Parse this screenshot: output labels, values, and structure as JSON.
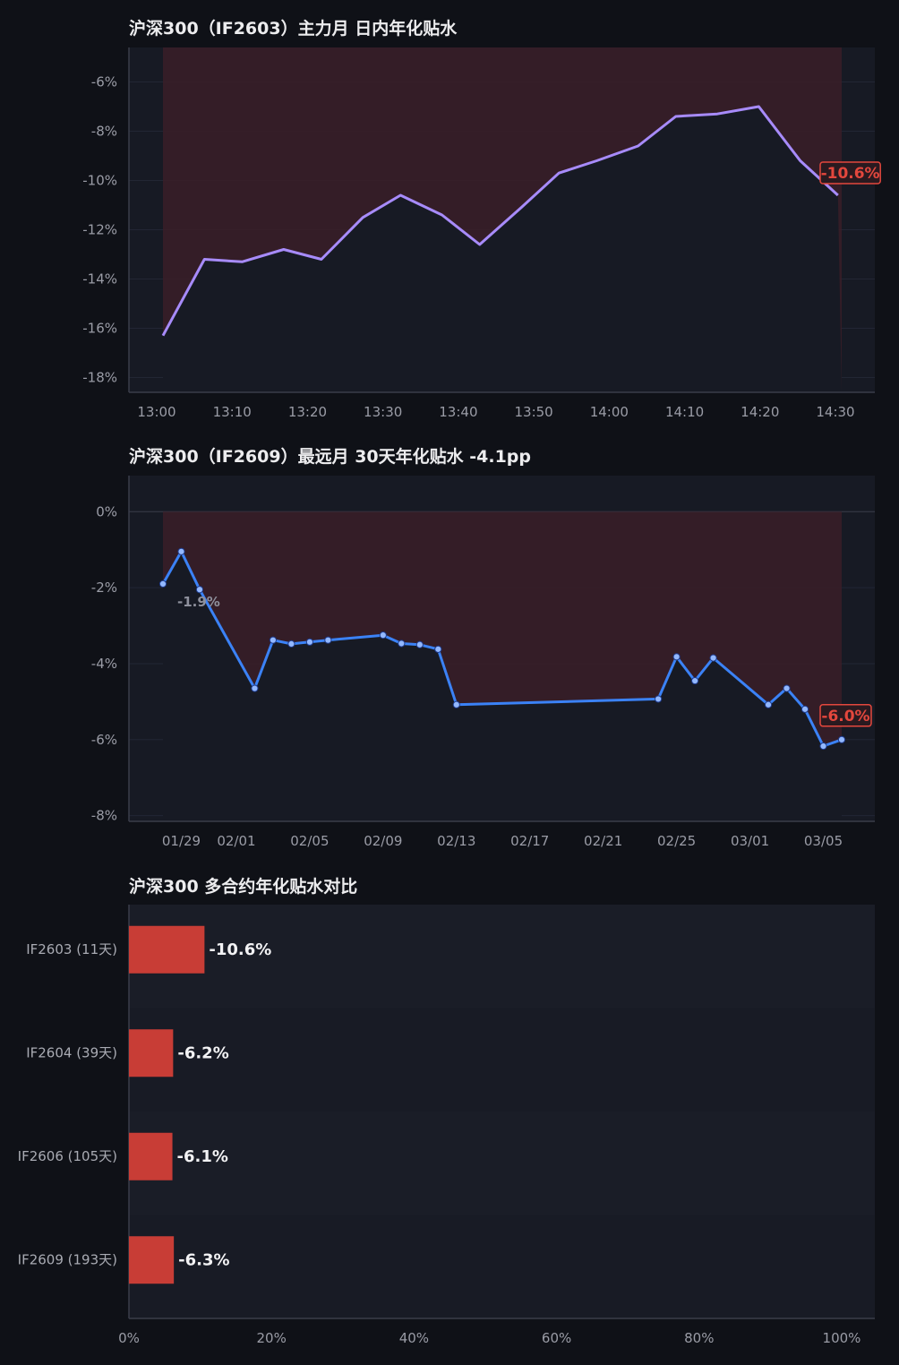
{
  "colors": {
    "page_bg": "#0f1117",
    "plot_bg": "#171a24",
    "shade": "#3a1f28",
    "line1": "#a78bfa",
    "line2": "#3b82f6",
    "bar": "#c83d36",
    "badge": "#e3473d",
    "grid": "#222634",
    "axis": "#3a3d4a"
  },
  "chart_data": [
    {
      "type": "line",
      "title": "沪深300（IF2603）主力月 日内年化贴水",
      "x_tick_labels": [
        "13:00",
        "13:10",
        "13:20",
        "13:30",
        "13:40",
        "13:50",
        "14:00",
        "14:10",
        "14:20",
        "14:30"
      ],
      "x_minutes": [
        0,
        5.5,
        10.5,
        16,
        21,
        26.5,
        31.5,
        37,
        42,
        47.5,
        52.5,
        57.5,
        63,
        68,
        73.5,
        79,
        84.5,
        89.5
      ],
      "y_values": [
        -16.3,
        -13.2,
        -13.3,
        -12.8,
        -13.2,
        -11.5,
        -10.6,
        -11.4,
        -12.6,
        -11.1,
        -9.7,
        -9.2,
        -8.6,
        -7.4,
        -7.3,
        -7.0,
        -9.2,
        -10.6
      ],
      "y_ticks": [
        -6,
        -8,
        -10,
        -12,
        -14,
        -16,
        -18
      ],
      "y_tick_labels": [
        "-6%",
        "-8%",
        "-10%",
        "-12%",
        "-14%",
        "-16%",
        "-18%"
      ],
      "ylim": [
        -18.6,
        -4.6
      ],
      "last_label": "-10.6%"
    },
    {
      "type": "line",
      "title": "沪深300（IF2609）最远月 30天年化贴水   -4.1pp",
      "x_tick_labels": [
        "01/29",
        "02/01",
        "02/05",
        "02/09",
        "02/13",
        "02/17",
        "02/21",
        "02/25",
        "03/01",
        "03/05"
      ],
      "x_dates": [
        "01/28",
        "01/29",
        "01/30",
        "02/02",
        "02/03",
        "02/04",
        "02/05",
        "02/06",
        "02/09",
        "02/10",
        "02/11",
        "02/12",
        "02/13",
        "02/24",
        "02/25",
        "02/26",
        "02/27",
        "03/02",
        "03/03",
        "03/04",
        "03/05",
        "03/06"
      ],
      "y_values": [
        -1.9,
        -1.05,
        -2.05,
        -4.65,
        -3.38,
        -3.48,
        -3.43,
        -3.38,
        -3.25,
        -3.47,
        -3.5,
        -3.62,
        -5.08,
        -4.93,
        -3.82,
        -4.45,
        -3.85,
        -5.08,
        -4.65,
        -5.2,
        -6.17,
        -6.0
      ],
      "y_ticks": [
        0,
        -2,
        -4,
        -6,
        -8
      ],
      "y_tick_labels": [
        "0%",
        "-2%",
        "-4%",
        "-6%",
        "-8%"
      ],
      "ylim": [
        -8.15,
        0.95
      ],
      "start_label": "-1.9%",
      "last_label": "-6.0%"
    },
    {
      "type": "bar",
      "title": "沪深300 多合约年化贴水对比",
      "categories": [
        "IF2603 (11天)",
        "IF2604 (39天)",
        "IF2606 (105天)",
        "IF2609 (193天)"
      ],
      "values": [
        10.6,
        6.2,
        6.1,
        6.3
      ],
      "value_labels": [
        "-10.6%",
        "-6.2%",
        "-6.1%",
        "-6.3%"
      ],
      "x_ticks": [
        0,
        20,
        40,
        60,
        80,
        100
      ],
      "x_tick_labels": [
        "0%",
        "20%",
        "40%",
        "60%",
        "80%",
        "100%"
      ],
      "xlim": [
        0,
        105
      ]
    }
  ]
}
